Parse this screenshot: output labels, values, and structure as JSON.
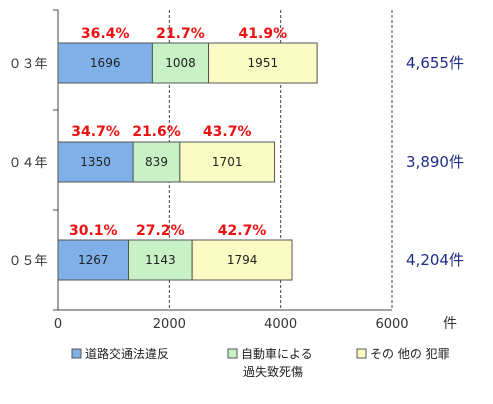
{
  "chart_data": {
    "type": "bar",
    "orientation": "horizontal",
    "stacked": true,
    "categories": [
      "０３年",
      "０４年",
      "０５年"
    ],
    "series": [
      {
        "name": "道路交通法違反",
        "values": [
          1696,
          1350,
          1267
        ],
        "percent_labels": [
          "36.4%",
          "34.7%",
          "30.1%"
        ],
        "color": "#7fb0e8"
      },
      {
        "name": "自動車による過失致死傷",
        "values": [
          1008,
          839,
          1143
        ],
        "percent_labels": [
          "21.7%",
          "21.6%",
          "27.2%"
        ],
        "color": "#c8f2c6"
      },
      {
        "name": "その他の犯罪",
        "values": [
          1951,
          1701,
          1794
        ],
        "percent_labels": [
          "41.9%",
          "43.7%",
          "42.7%"
        ],
        "color": "#fbfbc4"
      }
    ],
    "totals": [
      "4,655件",
      "3,890件",
      "4,204件"
    ],
    "xlim": [
      0,
      6000
    ],
    "xticks": [
      0,
      2000,
      4000,
      6000
    ],
    "xtick_labels": [
      "0",
      "2000",
      "4000",
      "6000"
    ],
    "xunit": "件",
    "grid": "vertical dashed",
    "legend": {
      "placement": "bottom",
      "entries": [
        {
          "lines": [
            "道路交通法違反"
          ]
        },
        {
          "lines": [
            "自動車による",
            "過失致死傷"
          ]
        },
        {
          "lines": [
            "その 他の 犯罪"
          ]
        }
      ]
    }
  }
}
